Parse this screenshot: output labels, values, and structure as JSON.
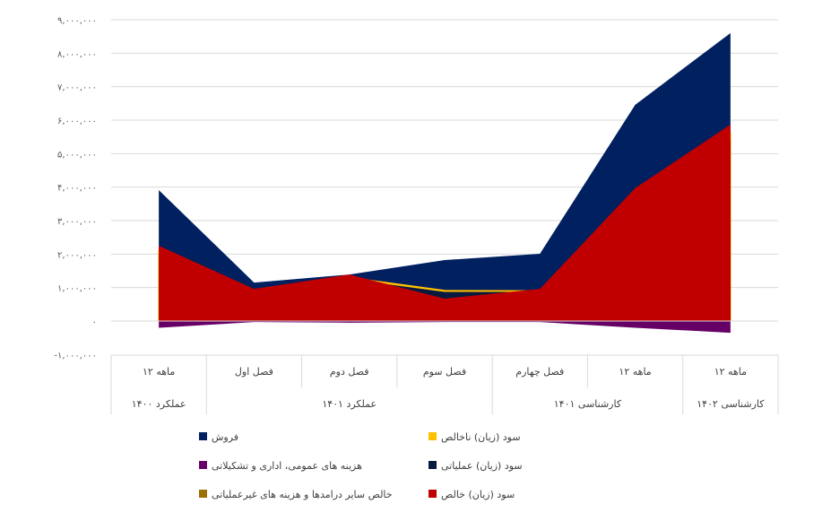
{
  "chart_data": {
    "type": "area",
    "title": "",
    "xlabel": "",
    "ylabel": "",
    "ylim": [
      -1000000,
      9000000
    ],
    "y_ticks": [
      -1000000,
      0,
      1000000,
      2000000,
      3000000,
      4000000,
      5000000,
      6000000,
      7000000,
      8000000,
      9000000
    ],
    "y_tick_labels": [
      "-۱,۰۰۰,۰۰۰",
      "۰",
      "۱,۰۰۰,۰۰۰",
      "۲,۰۰۰,۰۰۰",
      "۳,۰۰۰,۰۰۰",
      "۴,۰۰۰,۰۰۰",
      "۵,۰۰۰,۰۰۰",
      "۶,۰۰۰,۰۰۰",
      "۷,۰۰۰,۰۰۰",
      "۸,۰۰۰,۰۰۰",
      "۹,۰۰۰,۰۰۰"
    ],
    "grid": true,
    "legend_position": "bottom",
    "categories": [
      "۱۲ ماهه",
      "فصل اول",
      "فصل دوم",
      "فصل سوم",
      "فصل چهارم",
      "۱۲ ماهه",
      "۱۲ ماهه"
    ],
    "category_groups": [
      {
        "label": "عملکرد ۱۴۰۰",
        "span": 1
      },
      {
        "label": "عملکرد ۱۴۰۱",
        "span": 3
      },
      {
        "label": "کارشناسی ۱۴۰۱",
        "span": 2
      },
      {
        "label": "کارشناسی ۱۴۰۲",
        "span": 1
      }
    ],
    "series": [
      {
        "name": "فروش",
        "color": "#002060",
        "values": [
          3910000,
          1150000,
          1390000,
          1820000,
          2010000,
          6460000,
          8600000
        ]
      },
      {
        "name": "سود (زیان) ناخالص",
        "color": "#FFC000",
        "values": [
          2100000,
          900000,
          1300000,
          910000,
          900000,
          3800000,
          5600000
        ]
      },
      {
        "name": "هزینه های عمومی، اداری و تشکیلاتی",
        "color": "#660066",
        "values": [
          -200000,
          -30000,
          -50000,
          -30000,
          -30000,
          -200000,
          -350000
        ]
      },
      {
        "name": "سود (زیان) عملیاتی",
        "color": "#0A1A3F",
        "values": [
          2000000,
          870000,
          1250000,
          870000,
          870000,
          3700000,
          5400000
        ]
      },
      {
        "name": "خالص سایر درامدها و هزینه های غیرعملیاتی",
        "color": "#9C6F00",
        "values": [
          50000,
          20000,
          20000,
          20000,
          20000,
          50000,
          50000
        ]
      },
      {
        "name": "سود (زیان) خالص",
        "color": "#C00000",
        "values": [
          2250000,
          960000,
          1390000,
          670000,
          960000,
          3970000,
          5870000
        ]
      }
    ]
  }
}
